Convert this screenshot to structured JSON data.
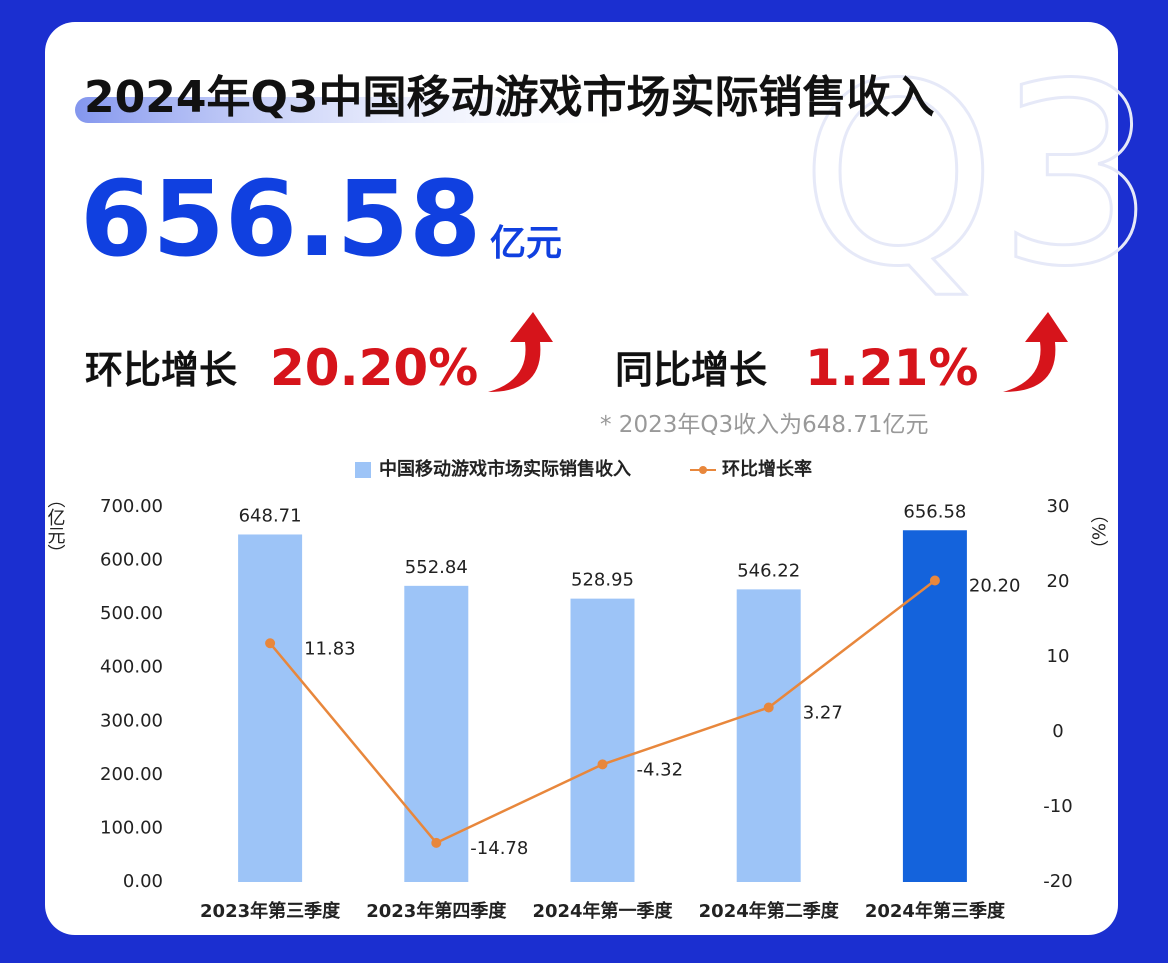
{
  "header": {
    "title": "2024年Q3中国移动游戏市场实际销售收入",
    "watermark": "Q3",
    "amount": "656.58",
    "amount_unit": "亿元",
    "qoq_label": "环比增长",
    "qoq_value": "20.20%",
    "yoy_label": "同比增长",
    "yoy_value": "1.21%",
    "note": "* 2023年Q3收入为648.71亿元"
  },
  "chart_data": {
    "type": "bar_line",
    "categories": [
      "2023年第三季度",
      "2023年第四季度",
      "2024年第一季度",
      "2024年第二季度",
      "2024年第三季度"
    ],
    "y_label": "（亿元）",
    "y2_label": "（%）",
    "series": [
      {
        "name": "中国移动游戏市场实际销售收入",
        "type": "bar",
        "color": "#9dc4f7",
        "colors": [
          "#9dc4f7",
          "#9dc4f7",
          "#9dc4f7",
          "#9dc4f7",
          "#1463dc"
        ],
        "values": [
          648.71,
          552.84,
          528.95,
          546.22,
          656.58
        ]
      },
      {
        "name": "环比增长率",
        "type": "line",
        "axis": "y2",
        "color": "#e8873c",
        "values": [
          11.83,
          -14.78,
          -4.32,
          3.27,
          20.2
        ],
        "value_labels": [
          "11.83",
          "-14.78",
          "-4.32",
          "3.27",
          "20.20"
        ]
      }
    ],
    "ylim": [
      0,
      700
    ],
    "yticks": [
      {
        "value": 0,
        "label": "0.00"
      },
      {
        "value": 100,
        "label": "100.00"
      },
      {
        "value": 200,
        "label": "200.00"
      },
      {
        "value": 300,
        "label": "300.00"
      },
      {
        "value": 400,
        "label": "400.00"
      },
      {
        "value": 500,
        "label": "500.00"
      },
      {
        "value": 600,
        "label": "600.00"
      },
      {
        "value": 700,
        "label": "700.00"
      }
    ],
    "y2lim": [
      -20,
      30
    ],
    "y2ticks": [
      -20,
      -10,
      0,
      10,
      20,
      30
    ],
    "grid": false
  }
}
